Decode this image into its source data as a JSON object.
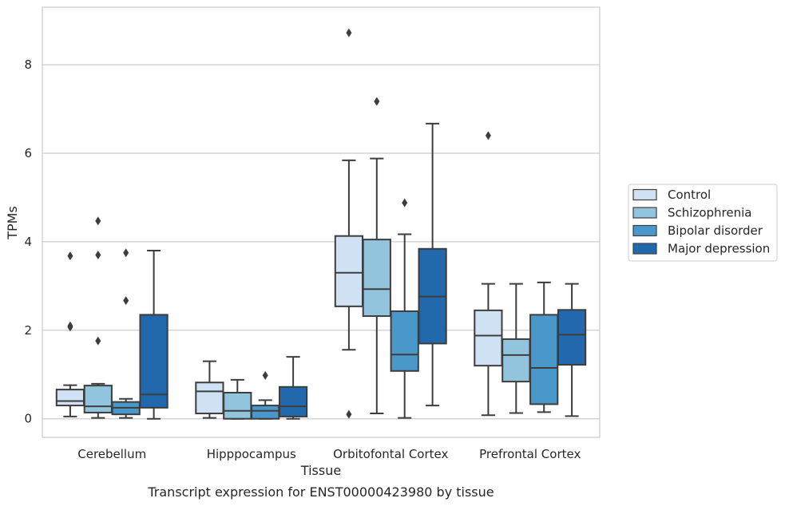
{
  "chart_data": {
    "type": "box",
    "caption": "Transcript expression for ENST00000423980 by tissue",
    "xlabel": "Tissue",
    "ylabel": "TPMs",
    "ylim": [
      -0.42,
      9.3
    ],
    "yticks": [
      0,
      2,
      4,
      6,
      8
    ],
    "grid": "horizontal",
    "legend_position": "right",
    "categories": [
      "Cerebellum",
      "Hipppocampus",
      "Orbitofontal Cortex",
      "Prefrontal Cortex"
    ],
    "series": [
      {
        "name": "Control",
        "color": "#cfe1f2",
        "boxes": [
          {
            "whislo": 0.05,
            "q1": 0.3,
            "med": 0.4,
            "q3": 0.66,
            "whishi": 0.76,
            "fliers": [
              2.07,
              2.1,
              3.68
            ]
          },
          {
            "whislo": 0.02,
            "q1": 0.12,
            "med": 0.62,
            "q3": 0.82,
            "whishi": 1.3,
            "fliers": []
          },
          {
            "whislo": 1.56,
            "q1": 2.54,
            "med": 3.3,
            "q3": 4.13,
            "whishi": 5.84,
            "fliers": [
              8.72,
              0.1
            ]
          },
          {
            "whislo": 0.08,
            "q1": 1.2,
            "med": 1.88,
            "q3": 2.45,
            "whishi": 3.05,
            "fliers": [
              6.4
            ]
          }
        ]
      },
      {
        "name": "Schizophrenia",
        "color": "#93c4de",
        "boxes": [
          {
            "whislo": 0.02,
            "q1": 0.14,
            "med": 0.28,
            "q3": 0.75,
            "whishi": 0.79,
            "fliers": [
              1.76,
              3.7,
              4.47
            ]
          },
          {
            "whislo": 0.0,
            "q1": 0.0,
            "med": 0.18,
            "q3": 0.59,
            "whishi": 0.88,
            "fliers": []
          },
          {
            "whislo": 0.12,
            "q1": 2.32,
            "med": 2.93,
            "q3": 4.05,
            "whishi": 5.88,
            "fliers": [
              7.17
            ]
          },
          {
            "whislo": 0.13,
            "q1": 0.84,
            "med": 1.44,
            "q3": 1.8,
            "whishi": 3.05,
            "fliers": []
          }
        ]
      },
      {
        "name": "Bipolar disorder",
        "color": "#4a98c9",
        "boxes": [
          {
            "whislo": 0.02,
            "q1": 0.1,
            "med": 0.25,
            "q3": 0.38,
            "whishi": 0.45,
            "fliers": [
              2.67,
              3.75
            ]
          },
          {
            "whislo": 0.0,
            "q1": 0.0,
            "med": 0.18,
            "q3": 0.3,
            "whishi": 0.42,
            "fliers": [
              0.98
            ]
          },
          {
            "whislo": 0.02,
            "q1": 1.08,
            "med": 1.45,
            "q3": 2.43,
            "whishi": 4.17,
            "fliers": [
              4.88
            ]
          },
          {
            "whislo": 0.15,
            "q1": 0.33,
            "med": 1.15,
            "q3": 2.35,
            "whishi": 3.08,
            "fliers": []
          }
        ]
      },
      {
        "name": "Major depression",
        "color": "#2268ad",
        "boxes": [
          {
            "whislo": 0.0,
            "q1": 0.25,
            "med": 0.55,
            "q3": 2.35,
            "whishi": 3.8,
            "fliers": []
          },
          {
            "whislo": 0.0,
            "q1": 0.05,
            "med": 0.28,
            "q3": 0.72,
            "whishi": 1.4,
            "fliers": []
          },
          {
            "whislo": 0.3,
            "q1": 1.7,
            "med": 2.76,
            "q3": 3.84,
            "whishi": 6.67,
            "fliers": []
          },
          {
            "whislo": 0.06,
            "q1": 1.22,
            "med": 1.9,
            "q3": 2.46,
            "whishi": 3.05,
            "fliers": []
          }
        ]
      }
    ]
  }
}
